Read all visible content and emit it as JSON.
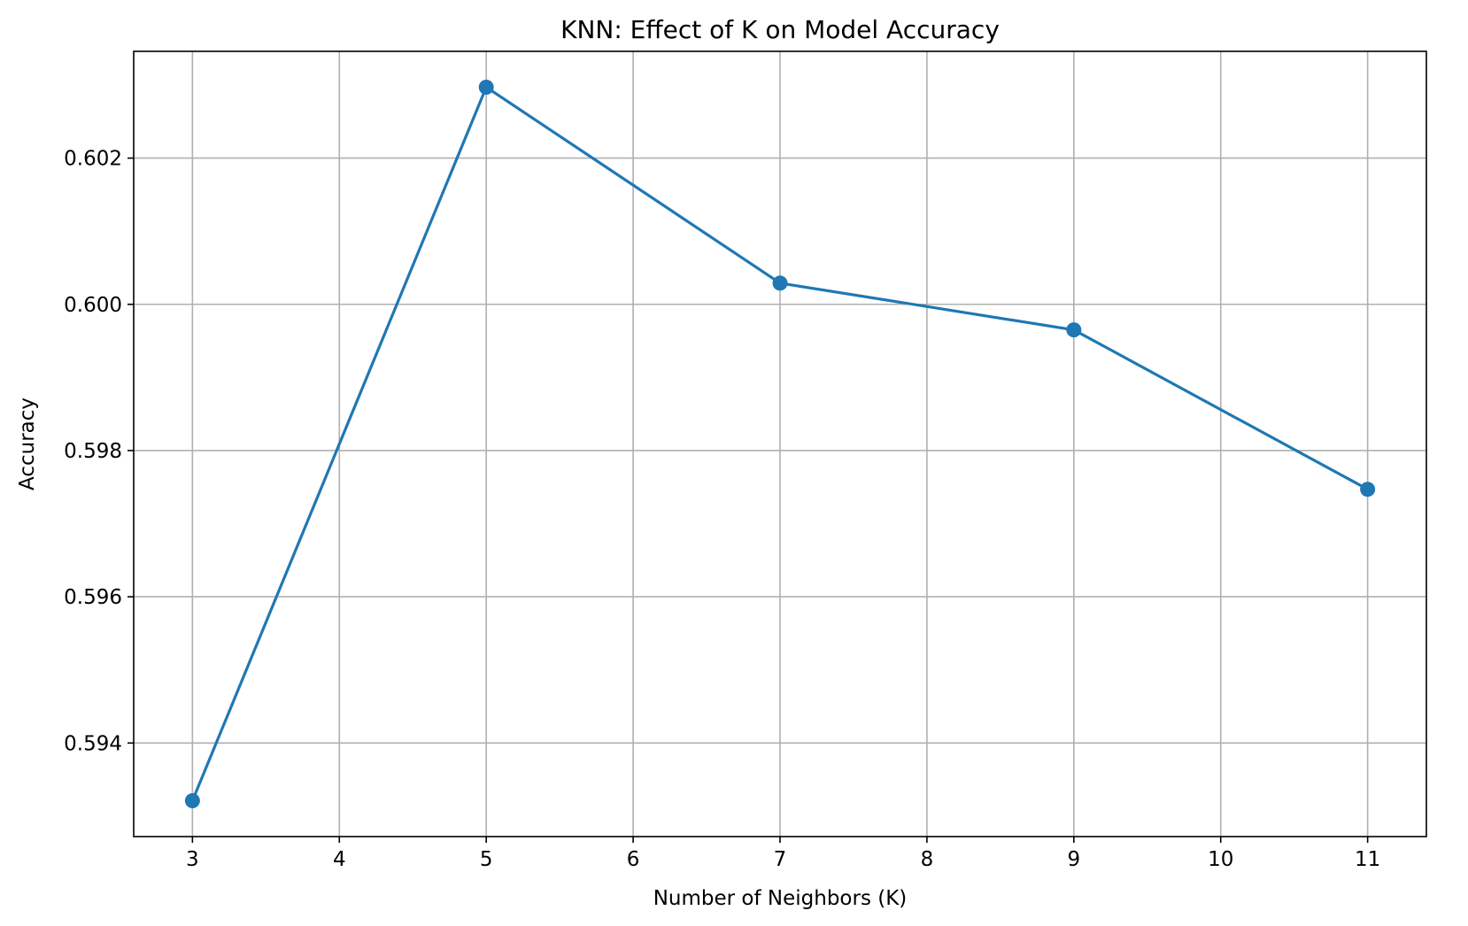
{
  "chart_data": {
    "type": "line",
    "title": "KNN: Effect of K on Model Accuracy",
    "xlabel": "Number of Neighbors (K)",
    "ylabel": "Accuracy",
    "x": [
      3,
      5,
      7,
      9,
      11
    ],
    "series": [
      {
        "values": [
          0.59321,
          0.60297,
          0.60029,
          0.59965,
          0.59747
        ],
        "color": "#1f77b4",
        "marker": "circle"
      }
    ],
    "xticks": [
      3,
      4,
      5,
      6,
      7,
      8,
      9,
      10,
      11
    ],
    "xtick_labels": [
      "3",
      "4",
      "5",
      "6",
      "7",
      "8",
      "9",
      "10",
      "11"
    ],
    "yticks": [
      0.594,
      0.596,
      0.598,
      0.6,
      0.602
    ],
    "ytick_labels": [
      "0.594",
      "0.596",
      "0.598",
      "0.600",
      "0.602"
    ],
    "xlim": [
      2.6,
      11.4
    ],
    "ylim": [
      0.59272,
      0.60346
    ],
    "grid": true,
    "legend": "none"
  }
}
